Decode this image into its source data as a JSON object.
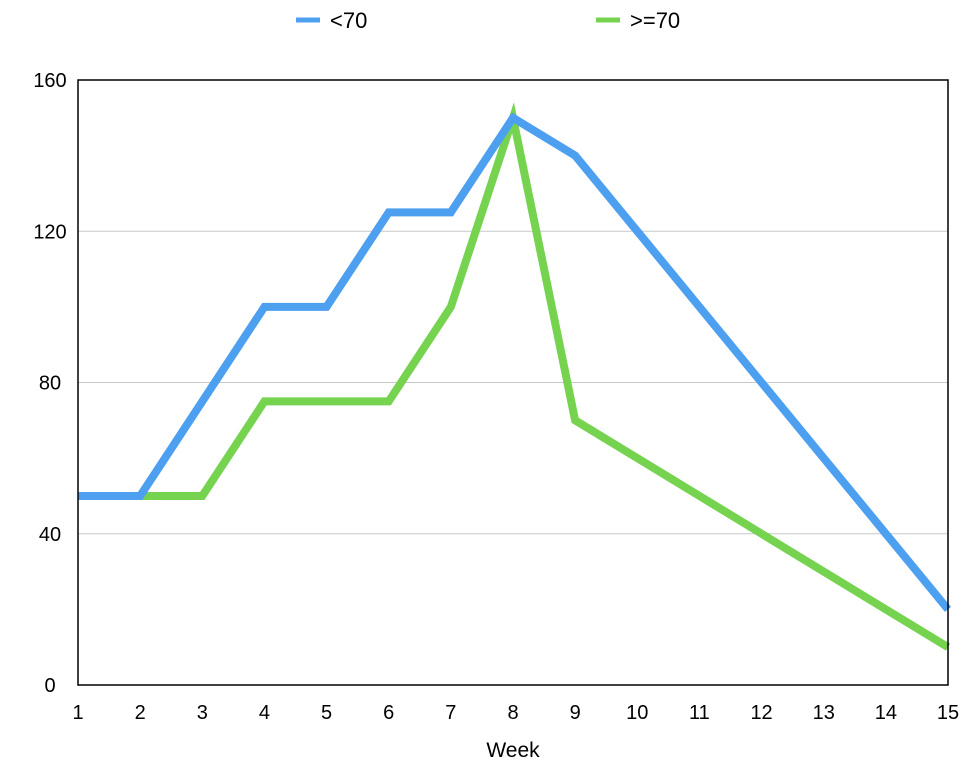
{
  "chart_data": {
    "type": "line",
    "title": "",
    "xlabel": "Week",
    "ylabel": "",
    "x": [
      1,
      2,
      3,
      4,
      5,
      6,
      7,
      8,
      9,
      10,
      11,
      12,
      13,
      14,
      15
    ],
    "xlim": [
      1,
      15
    ],
    "ylim": [
      0,
      160
    ],
    "y_ticks": [
      0,
      40,
      80,
      120,
      160
    ],
    "grid": "horizontal",
    "legend_position": "top",
    "series": [
      {
        "name": "<70",
        "color": "#4D9FF0",
        "x": [
          1,
          2,
          3,
          4,
          5,
          6,
          7,
          8,
          9,
          15
        ],
        "values": [
          50,
          50,
          75,
          100,
          100,
          125,
          125,
          150,
          140,
          20
        ]
      },
      {
        "name": ">=70",
        "color": "#76D350",
        "x": [
          1,
          2,
          3,
          4,
          5,
          6,
          7,
          8,
          9,
          15
        ],
        "values": [
          50,
          50,
          50,
          75,
          75,
          75,
          100,
          150,
          70,
          10
        ]
      }
    ]
  }
}
